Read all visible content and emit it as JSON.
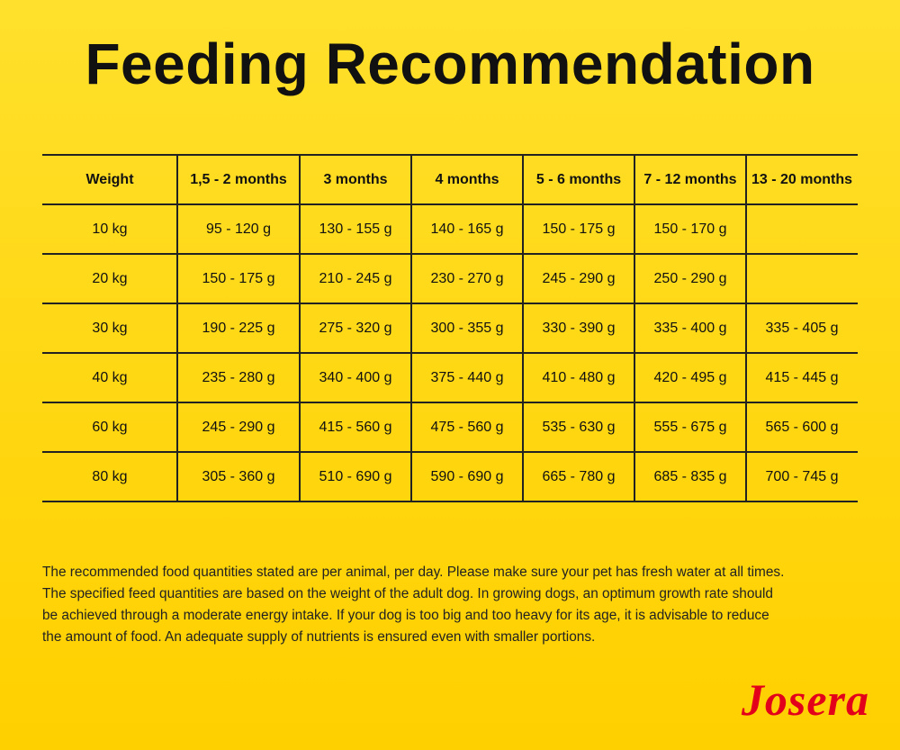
{
  "header": {
    "title": "Feeding Recommendation"
  },
  "table": {
    "columns": [
      "Weight",
      "1,5 - 2 months",
      "3 months",
      "4 months",
      "5 - 6 months",
      "7 - 12 months",
      "13 - 20 months"
    ],
    "rows": [
      [
        "10 kg",
        "95 - 120 g",
        "130 - 155 g",
        "140 - 165 g",
        "150 - 175 g",
        "150 - 170 g",
        null
      ],
      [
        "20 kg",
        "150 - 175 g",
        "210 - 245 g",
        "230 - 270 g",
        "245 - 290 g",
        "250 - 290 g",
        null
      ],
      [
        "30 kg",
        "190 - 225 g",
        "275 - 320 g",
        "300 - 355 g",
        "330 - 390 g",
        "335 - 400 g",
        "335 - 405 g"
      ],
      [
        "40 kg",
        "235 - 280 g",
        "340 - 400 g",
        "375 - 440 g",
        "410 - 480 g",
        "420 - 495 g",
        "415 - 445 g"
      ],
      [
        "60 kg",
        "245 - 290 g",
        "415 - 560 g",
        "475 - 560 g",
        "535 - 630 g",
        "555 - 675 g",
        "565 - 600 g"
      ],
      [
        "80 kg",
        "305 - 360 g",
        "510 - 690 g",
        "590 - 690 g",
        "665 - 780 g",
        "685 - 835 g",
        "700 - 745 g"
      ]
    ]
  },
  "footer": {
    "lines": [
      "The recommended food quantities stated are per animal, per day. Please make sure your pet has fresh water at all times.",
      "The specified feed quantities are based on the weight of the adult dog. In growing dogs, an optimum growth rate should",
      "be achieved through a moderate energy intake. If your dog is too big and too heavy for its age, it is advisable to reduce",
      "the amount of food. An adequate supply of nutrients is ensured even with smaller portions."
    ]
  },
  "logo": "Josera"
}
